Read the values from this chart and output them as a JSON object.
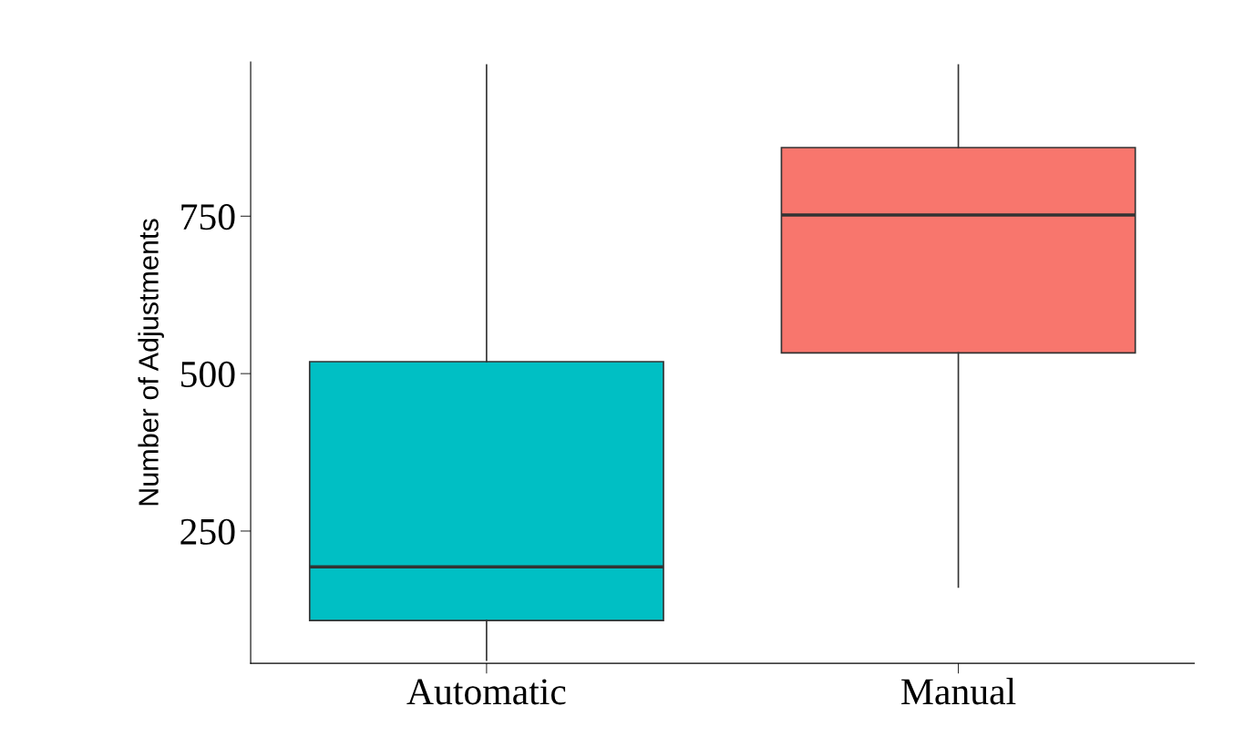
{
  "chart_data": {
    "type": "box",
    "ylabel": "Number of Adjustments",
    "categories": [
      "Automatic",
      "Manual"
    ],
    "boxes": [
      {
        "low": 45,
        "q1": 108,
        "median": 193,
        "q3": 519,
        "high": 990
      },
      {
        "low": 161,
        "q1": 533,
        "median": 752,
        "q3": 859,
        "high": 990
      }
    ],
    "colors": [
      "#00bfc4",
      "#f8766d"
    ],
    "ylim": [
      40,
      995
    ],
    "yticks": [
      250,
      500,
      750
    ],
    "grid": false,
    "legend": false
  }
}
